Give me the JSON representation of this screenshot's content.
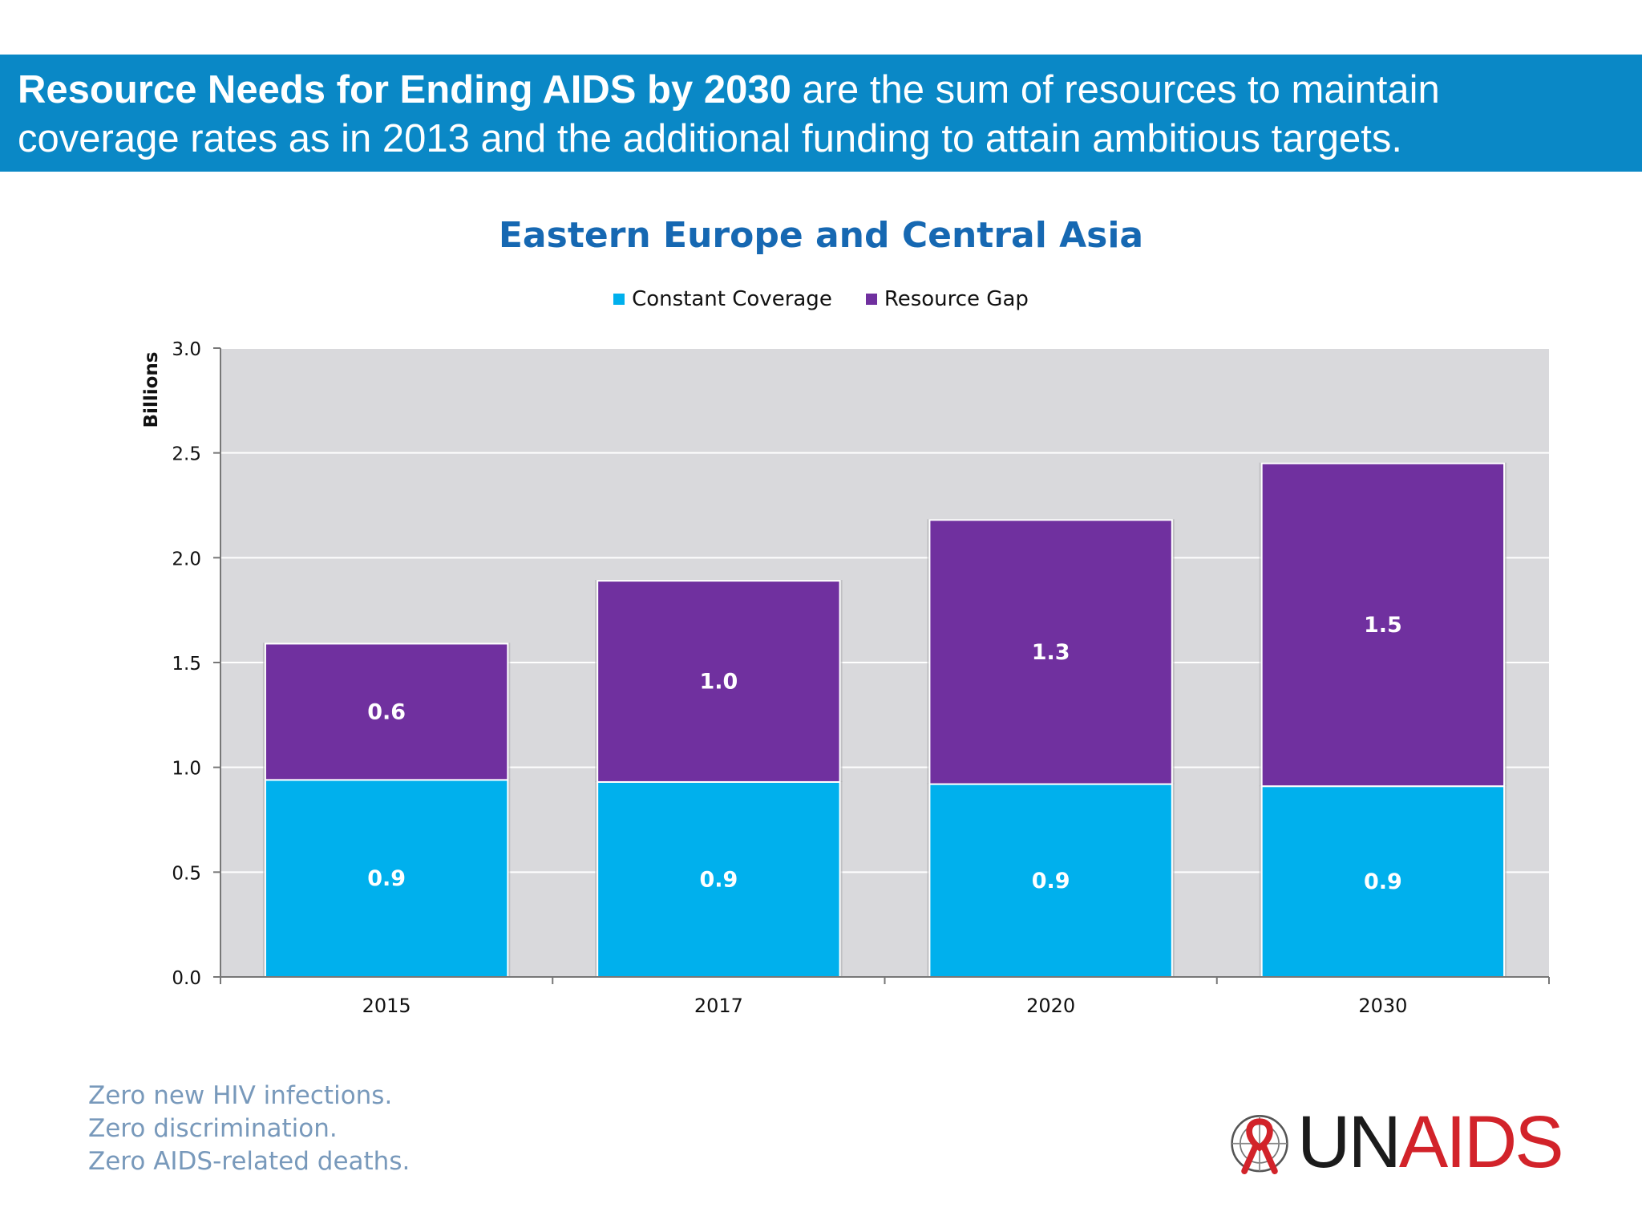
{
  "header": {
    "bold_text": "Resource Needs for Ending AIDS by 2030",
    "line1_rest": " are the sum of resources to maintain",
    "line2": "coverage rates as in 2013 and the additional funding to attain ambitious targets."
  },
  "chart_data": {
    "type": "bar",
    "stacked": true,
    "title": "Eastern Europe and Central Asia",
    "xlabel": "",
    "ylabel": "Billions",
    "categories": [
      "2015",
      "2017",
      "2020",
      "2030"
    ],
    "series": [
      {
        "name": "Constant Coverage",
        "color": "#00b0ed",
        "values": [
          0.94,
          0.93,
          0.92,
          0.91
        ],
        "labels": [
          "0.9",
          "0.9",
          "0.9",
          "0.9"
        ]
      },
      {
        "name": "Resource Gap",
        "color": "#70309f",
        "values": [
          0.65,
          0.96,
          1.26,
          1.54
        ],
        "labels": [
          "0.6",
          "1.0",
          "1.3",
          "1.5"
        ]
      }
    ],
    "ylim": [
      0,
      3.0
    ],
    "yticks": [
      "0.0",
      "0.5",
      "1.0",
      "1.5",
      "2.0",
      "2.5",
      "3.0"
    ],
    "grid": true,
    "legend_position": "top"
  },
  "footer": {
    "tagline": [
      "Zero new HIV infections.",
      "Zero discrimination.",
      "Zero AIDS-related deaths."
    ],
    "logo_un": "UN",
    "logo_aids": "AIDS",
    "logo_icon": "red-ribbon-un-emblem-icon"
  }
}
